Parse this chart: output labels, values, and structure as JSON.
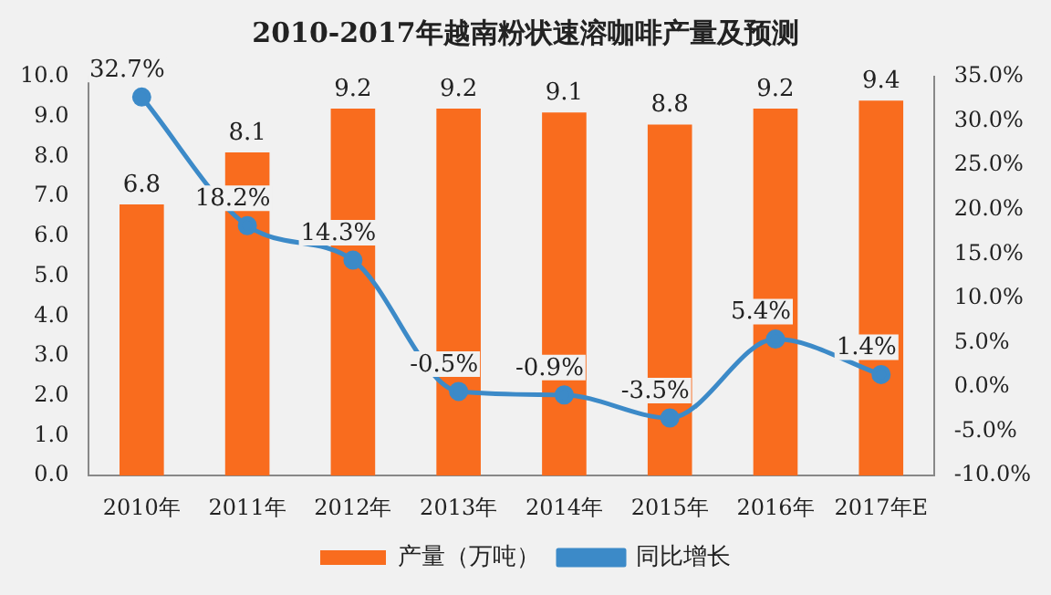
{
  "chart_data": {
    "type": "bar",
    "title": "2010-2017年越南粉状速溶咖啡产量及预测",
    "categories": [
      "2010年",
      "2011年",
      "2012年",
      "2013年",
      "2014年",
      "2015年",
      "2016年",
      "2017年E"
    ],
    "series": [
      {
        "name": "产量（万吨）",
        "color": "#f96c1e",
        "values": [
          6.8,
          8.1,
          9.2,
          9.2,
          9.1,
          8.8,
          9.2,
          9.4
        ]
      },
      {
        "name": "同比增长",
        "type": "line",
        "axis": "y2",
        "color": "#3c8ac8",
        "values": [
          32.7,
          18.2,
          14.3,
          -0.5,
          -0.9,
          -3.5,
          5.4,
          1.4
        ],
        "value_labels": [
          "32.7%",
          "18.2%",
          "14.3%",
          "-0.5%",
          "-0.9%",
          "-3.5%",
          "5.4%",
          "1.4%"
        ]
      }
    ],
    "ylim": [
      0,
      10
    ],
    "yticks": [
      {
        "value": 0,
        "label": "0.0"
      },
      {
        "value": 1,
        "label": "1.0"
      },
      {
        "value": 2,
        "label": "2.0"
      },
      {
        "value": 3,
        "label": "3.0"
      },
      {
        "value": 4,
        "label": "4.0"
      },
      {
        "value": 5,
        "label": "5.0"
      },
      {
        "value": 6,
        "label": "6.0"
      },
      {
        "value": 7,
        "label": "7.0"
      },
      {
        "value": 8,
        "label": "8.0"
      },
      {
        "value": 9,
        "label": "9.0"
      },
      {
        "value": 10,
        "label": "10.0"
      }
    ],
    "y2lim": [
      -10,
      35
    ],
    "y2ticks": [
      {
        "value": -10,
        "label": "-10.0%"
      },
      {
        "value": -5,
        "label": "-5.0%"
      },
      {
        "value": 0,
        "label": "0.0%"
      },
      {
        "value": 5,
        "label": "5.0%"
      },
      {
        "value": 10,
        "label": "10.0%"
      },
      {
        "value": 15,
        "label": "15.0%"
      },
      {
        "value": 20,
        "label": "20.0%"
      },
      {
        "value": 25,
        "label": "25.0%"
      },
      {
        "value": 30,
        "label": "30.0%"
      },
      {
        "value": 35,
        "label": "35.0%"
      }
    ],
    "grid": false,
    "legend": "bottom",
    "marker": "circle",
    "data_labels": true
  }
}
